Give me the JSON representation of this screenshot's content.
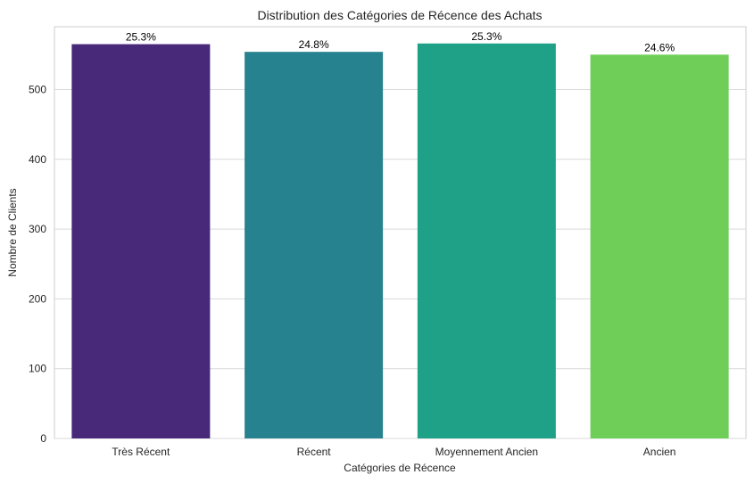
{
  "chart_data": {
    "type": "bar",
    "title": "Distribution des Catégories de Récence des Achats",
    "xlabel": "Catégories de Récence",
    "ylabel": "Nombre de Clients",
    "categories": [
      "Très Récent",
      "Récent",
      "Moyennement Ancien",
      "Ancien"
    ],
    "values": [
      565,
      554,
      566,
      550
    ],
    "bar_labels": [
      "25.3%",
      "24.8%",
      "25.3%",
      "24.6%"
    ],
    "colors": [
      "#482878",
      "#26828e",
      "#1fa187",
      "#6ece58"
    ],
    "ylim": [
      0,
      590
    ],
    "yticks": [
      "0",
      "100",
      "200",
      "300",
      "400",
      "500"
    ],
    "ytick_values": [
      0,
      100,
      200,
      300,
      400,
      500
    ],
    "grid": true,
    "legend": "none"
  }
}
